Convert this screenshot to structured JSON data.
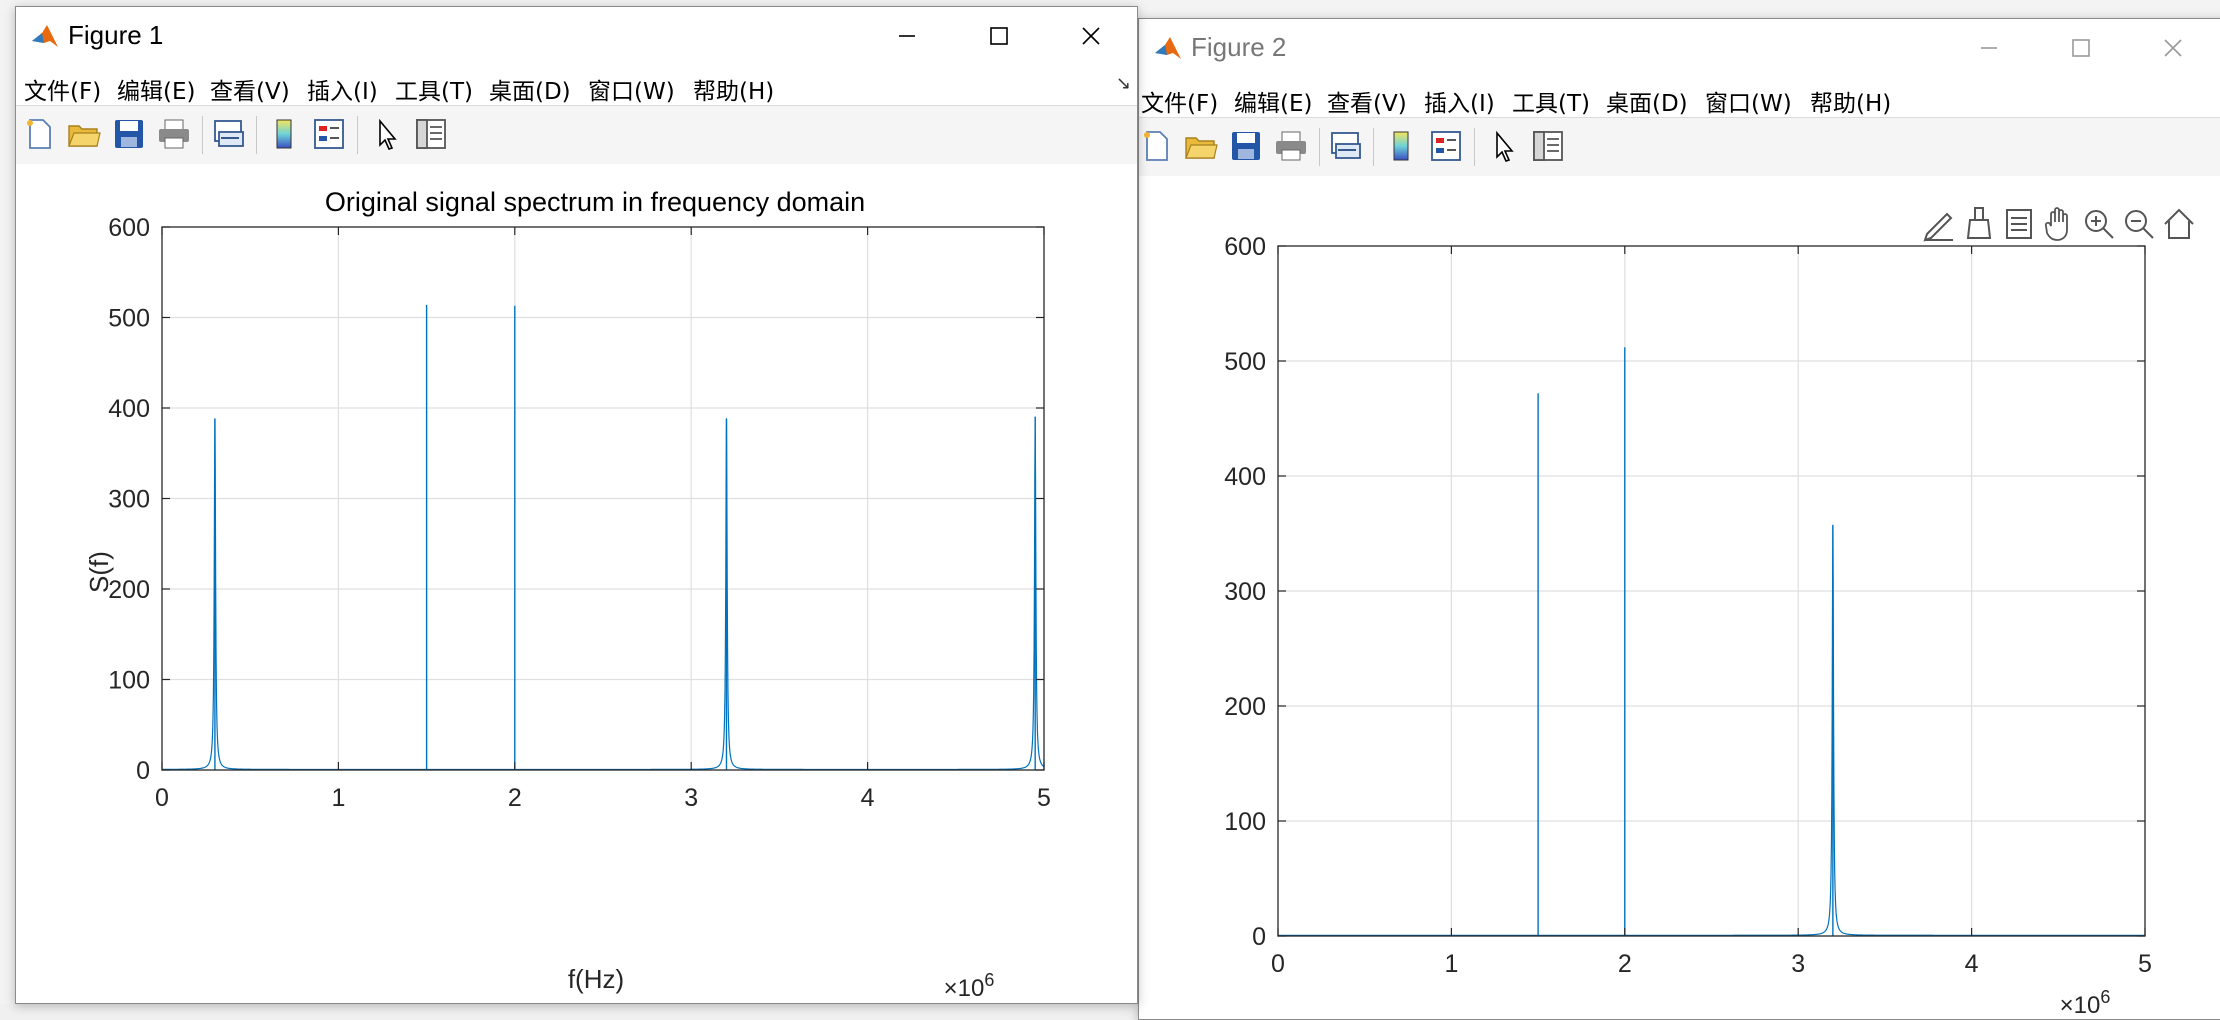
{
  "colors": {
    "series": "#0072bd",
    "grid": "#dfdfdf",
    "axis": "#262626"
  },
  "figures": [
    {
      "title": "Figure 1",
      "menu": [
        "文件(F)",
        "编辑(E)",
        "查看(V)",
        "插入(I)",
        "工具(T)",
        "桌面(D)",
        "窗口(W)",
        "帮助(H)"
      ],
      "toolbar_icons": [
        "new-figure-icon",
        "open-file-icon",
        "save-icon",
        "print-icon",
        "link-plot-icon",
        "colorbar-icon",
        "legend-icon",
        "edit-plot-icon",
        "property-inspector-icon"
      ],
      "window_buttons": [
        "minimize-icon",
        "maximize-icon",
        "close-icon"
      ]
    },
    {
      "title": "Figure 2",
      "menu": [
        "文件(F)",
        "编辑(E)",
        "查看(V)",
        "插入(I)",
        "工具(T)",
        "桌面(D)",
        "窗口(W)",
        "帮助(H)"
      ],
      "toolbar_icons": [
        "new-figure-icon",
        "open-file-icon",
        "save-icon",
        "print-icon",
        "link-plot-icon",
        "colorbar-icon",
        "legend-icon",
        "edit-plot-icon",
        "property-inspector-icon"
      ],
      "window_buttons": [
        "minimize-icon",
        "maximize-icon",
        "close-icon"
      ],
      "axes_toolbar_icons": [
        "brush-edit-icon",
        "data-brush-icon",
        "data-tips-icon",
        "pan-icon",
        "zoom-in-icon",
        "zoom-out-icon",
        "home-icon"
      ]
    }
  ],
  "chart_data": [
    {
      "type": "line",
      "title": "Original signal spectrum in frequency domain",
      "xlabel": "f(Hz)",
      "ylabel": "S(f)",
      "xlim": [
        0,
        5
      ],
      "ylim": [
        0,
        600
      ],
      "x_multiplier": "×10^6",
      "xticks": [
        0,
        1,
        2,
        3,
        4,
        5
      ],
      "yticks": [
        0,
        100,
        200,
        300,
        400,
        500,
        600
      ],
      "grid": true,
      "series": [
        {
          "peaks": [
            {
              "x": 0.3,
              "y": 388,
              "kind": "lorentzian"
            },
            {
              "x": 1.5,
              "y": 514,
              "kind": "spike"
            },
            {
              "x": 2.0,
              "y": 513,
              "kind": "spike"
            },
            {
              "x": 3.2,
              "y": 388,
              "kind": "lorentzian"
            },
            {
              "x": 4.95,
              "y": 390,
              "kind": "lorentzian"
            }
          ]
        }
      ]
    },
    {
      "type": "line",
      "title": "",
      "xlabel": "",
      "ylabel": "",
      "xlim": [
        0,
        5
      ],
      "ylim": [
        0,
        600
      ],
      "x_multiplier": "×10^6",
      "xticks": [
        0,
        1,
        2,
        3,
        4,
        5
      ],
      "yticks": [
        0,
        100,
        200,
        300,
        400,
        500,
        600
      ],
      "grid": true,
      "series": [
        {
          "peaks": [
            {
              "x": 1.5,
              "y": 472,
              "kind": "spike"
            },
            {
              "x": 2.0,
              "y": 512,
              "kind": "spike"
            },
            {
              "x": 3.2,
              "y": 357,
              "kind": "lorentzian"
            }
          ]
        }
      ]
    }
  ]
}
